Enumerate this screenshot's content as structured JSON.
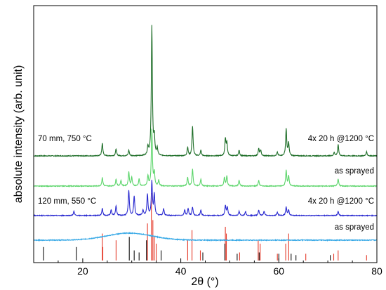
{
  "chart_data": {
    "type": "line",
    "xlabel": "2θ (°)",
    "ylabel": "absolute intensity (arb. unit)",
    "xlim": [
      10,
      80
    ],
    "x_ticks": [
      20,
      40,
      60,
      80
    ],
    "y_ticks_shown": false,
    "grid": false,
    "reference_peaks": [
      {
        "color": "#e53a2a",
        "positions": [
          24.0,
          24.1,
          26.8,
          33.2,
          34.0,
          34.3,
          34.6,
          35.0,
          41.4,
          42.3,
          44.0,
          49.1,
          49.3,
          52.0,
          55.8,
          56.2,
          59.7,
          61.4,
          62.0,
          65.5,
          71.2,
          72.1,
          77.9
        ],
        "heights": [
          0.4,
          0.2,
          0.3,
          0.55,
          1.0,
          0.6,
          0.35,
          0.25,
          0.3,
          0.45,
          0.15,
          0.5,
          0.4,
          0.12,
          0.3,
          0.25,
          0.1,
          0.25,
          0.4,
          0.1,
          0.1,
          0.15,
          0.08
        ]
      },
      {
        "color": "#111111",
        "positions": [
          12.0,
          18.7,
          29.5,
          30.5,
          31.5,
          33.0,
          36.0,
          44.5,
          49.0,
          51.5,
          56.0,
          60.0,
          62.5,
          63.5,
          70.5
        ],
        "heights": [
          0.2,
          0.2,
          0.35,
          0.15,
          0.12,
          0.3,
          0.15,
          0.12,
          0.25,
          0.1,
          0.12,
          0.1,
          0.1,
          0.08,
          0.08
        ]
      }
    ],
    "series": [
      {
        "name": "70 mm, 750 °C",
        "condition": "4x 20 h @1200 °C",
        "color": "#1e6e28",
        "baseline": 222,
        "peaks": [
          [
            24.0,
            18
          ],
          [
            26.8,
            10
          ],
          [
            29.4,
            8
          ],
          [
            33.3,
            12
          ],
          [
            34.1,
            184
          ],
          [
            34.6,
            24
          ],
          [
            35.2,
            10
          ],
          [
            41.4,
            12
          ],
          [
            42.4,
            42
          ],
          [
            44.1,
            8
          ],
          [
            49.1,
            24
          ],
          [
            49.4,
            18
          ],
          [
            51.9,
            8
          ],
          [
            55.9,
            10
          ],
          [
            56.3,
            8
          ],
          [
            59.7,
            5
          ],
          [
            61.5,
            38
          ],
          [
            62.0,
            18
          ],
          [
            71.3,
            5
          ],
          [
            72.1,
            16
          ],
          [
            77.9,
            6
          ]
        ]
      },
      {
        "name": "",
        "condition": "as sprayed",
        "color": "#5bd56a",
        "baseline": 265,
        "peaks": [
          [
            24.0,
            12
          ],
          [
            26.8,
            10
          ],
          [
            27.8,
            8
          ],
          [
            29.4,
            20
          ],
          [
            30.0,
            12
          ],
          [
            31.5,
            10
          ],
          [
            33.3,
            14
          ],
          [
            34.1,
            80
          ],
          [
            34.6,
            18
          ],
          [
            35.5,
            8
          ],
          [
            41.4,
            12
          ],
          [
            42.4,
            24
          ],
          [
            44.1,
            10
          ],
          [
            48.9,
            12
          ],
          [
            49.4,
            14
          ],
          [
            51.9,
            8
          ],
          [
            55.9,
            8
          ],
          [
            61.5,
            22
          ],
          [
            62.0,
            14
          ],
          [
            72.1,
            10
          ]
        ]
      },
      {
        "name": "120 mm, 550 °C",
        "condition": "4x 20 h @1200 °C",
        "color": "#2a2ad0",
        "baseline": 307,
        "peaks": [
          [
            18.2,
            6
          ],
          [
            24.0,
            10
          ],
          [
            25.8,
            8
          ],
          [
            26.8,
            14
          ],
          [
            29.4,
            36
          ],
          [
            30.5,
            28
          ],
          [
            32.3,
            8
          ],
          [
            33.2,
            30
          ],
          [
            34.1,
            48
          ],
          [
            34.6,
            30
          ],
          [
            36.5,
            10
          ],
          [
            40.8,
            8
          ],
          [
            41.5,
            10
          ],
          [
            42.4,
            12
          ],
          [
            44.1,
            8
          ],
          [
            49.1,
            14
          ],
          [
            49.5,
            12
          ],
          [
            51.9,
            6
          ],
          [
            53.2,
            6
          ],
          [
            55.9,
            8
          ],
          [
            57.0,
            6
          ],
          [
            59.7,
            5
          ],
          [
            61.5,
            12
          ],
          [
            62.0,
            8
          ],
          [
            72.1,
            6
          ]
        ]
      },
      {
        "name": "",
        "condition": "as sprayed",
        "color": "#35a8e6",
        "baseline": 342,
        "hump": {
          "center": 29.5,
          "width": 6.5,
          "height": 10
        },
        "peaks": []
      }
    ],
    "labels": {
      "left_70": "70 mm, 750 °C",
      "right_70": "4x 20 h @1200 °C",
      "right_as1": "as sprayed",
      "left_120": "120 mm, 550 °C",
      "right_120": "4x 20 h @1200 °C",
      "right_as2": "as sprayed"
    }
  }
}
